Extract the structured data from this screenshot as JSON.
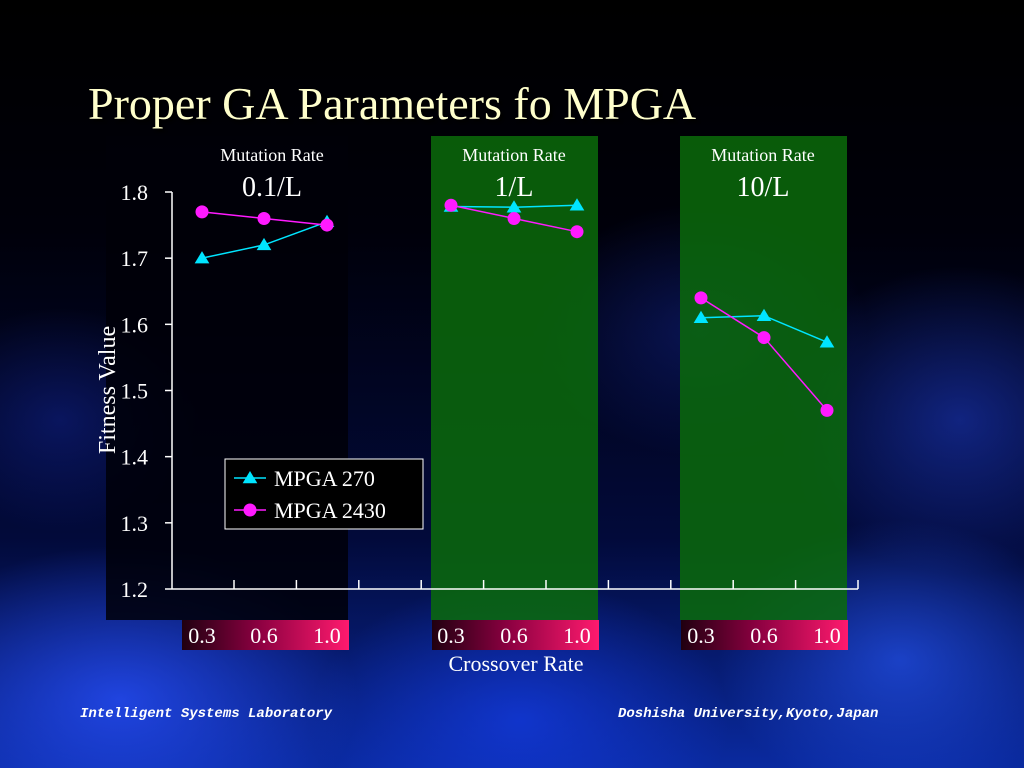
{
  "slide": {
    "title": "Proper GA Parameters fo MPGA"
  },
  "footer": {
    "left": "Intelligent Systems Laboratory",
    "right": "Doshisha University,Kyoto,Japan"
  },
  "colors": {
    "series_270": "#00e5ff",
    "series_2430": "#ff1aff",
    "title": "#ffffcc",
    "panel_highlight": "#0a6b0a"
  },
  "chart_data": {
    "type": "line",
    "ylabel": "Fitness Value",
    "xlabel": "Crossover Rate",
    "ylim": [
      1.2,
      1.8
    ],
    "yticks": [
      "1.2",
      "1.3",
      "1.4",
      "1.5",
      "1.6",
      "1.7",
      "1.8"
    ],
    "groups": [
      {
        "header": "Mutation Rate",
        "rate": "0.1/L",
        "highlighted": false,
        "x_labels": [
          "0.3",
          "0.6",
          "1.0"
        ],
        "series": [
          {
            "name": "MPGA 270",
            "marker": "triangle",
            "values": [
              1.7,
              1.72,
              1.755
            ]
          },
          {
            "name": "MPGA 2430",
            "marker": "circle",
            "values": [
              1.77,
              1.76,
              1.75
            ]
          }
        ]
      },
      {
        "header": "Mutation Rate",
        "rate": "1/L",
        "highlighted": true,
        "x_labels": [
          "0.3",
          "0.6",
          "1.0"
        ],
        "series": [
          {
            "name": "MPGA 270",
            "marker": "triangle",
            "values": [
              1.778,
              1.777,
              1.78
            ]
          },
          {
            "name": "MPGA 2430",
            "marker": "circle",
            "values": [
              1.78,
              1.76,
              1.74
            ]
          }
        ]
      },
      {
        "header": "Mutation Rate",
        "rate": "10/L",
        "highlighted": true,
        "x_labels": [
          "0.3",
          "0.6",
          "1.0"
        ],
        "series": [
          {
            "name": "MPGA 270",
            "marker": "triangle",
            "values": [
              1.61,
              1.613,
              1.573
            ]
          },
          {
            "name": "MPGA 2430",
            "marker": "circle",
            "values": [
              1.64,
              1.58,
              1.47
            ]
          }
        ]
      }
    ],
    "legend": {
      "placement": "lower-left",
      "entries": [
        "MPGA 270",
        "MPGA 2430"
      ]
    }
  }
}
